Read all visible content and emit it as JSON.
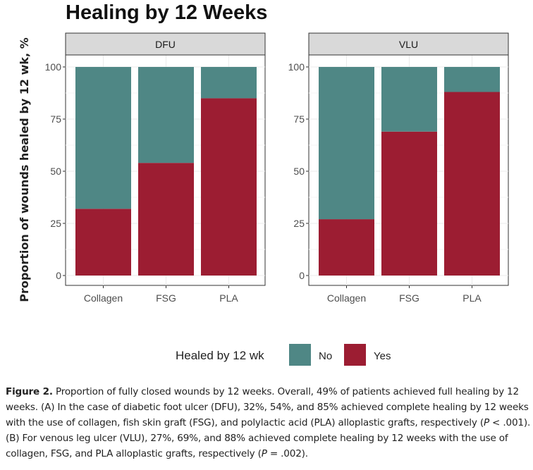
{
  "chart_data": {
    "type": "bar",
    "stacked": true,
    "title": "Healing by 12 Weeks",
    "ylabel": "Proportion of wounds healed by 12 wk, %",
    "xlabel": "",
    "ylim": [
      0,
      100
    ],
    "yticks": [
      0,
      25,
      50,
      75,
      100
    ],
    "grid": true,
    "legend": {
      "title": "Healed by 12 wk",
      "position": "bottom",
      "entries": [
        "No",
        "Yes"
      ]
    },
    "colors": {
      "No": "#4f8785",
      "Yes": "#9c1d32"
    },
    "panels": [
      {
        "name": "DFU",
        "categories": [
          "Collagen",
          "FSG",
          "PLA"
        ],
        "series": [
          {
            "name": "Yes",
            "values": [
              32,
              54,
              85
            ]
          },
          {
            "name": "No",
            "values": [
              68,
              46,
              15
            ]
          }
        ]
      },
      {
        "name": "VLU",
        "categories": [
          "Collagen",
          "FSG",
          "PLA"
        ],
        "series": [
          {
            "name": "Yes",
            "values": [
              27,
              69,
              88
            ]
          },
          {
            "name": "No",
            "values": [
              73,
              31,
              12
            ]
          }
        ]
      }
    ]
  },
  "caption": {
    "label": "Figure 2.",
    "segments": [
      {
        "t": " Proportion of fully closed wounds by 12 weeks. Overall, 49% of patients achieved full healing by 12 weeks. (A) In the case of diabetic foot ulcer (DFU), 32%, 54%, and 85% achieved complete healing by 12 weeks with the use of collagen, fish skin graft (FSG), and polylactic acid (PLA) alloplastic grafts, respectively ("
      },
      {
        "t": "P",
        "i": true
      },
      {
        "t": " < .001). (B) For venous leg ulcer (VLU), 27%, 69%, and 88% achieved complete healing by 12 weeks with the use of collagen, FSG, and PLA alloplastic grafts, respectively ("
      },
      {
        "t": "P",
        "i": true
      },
      {
        "t": " = .002)."
      }
    ]
  }
}
